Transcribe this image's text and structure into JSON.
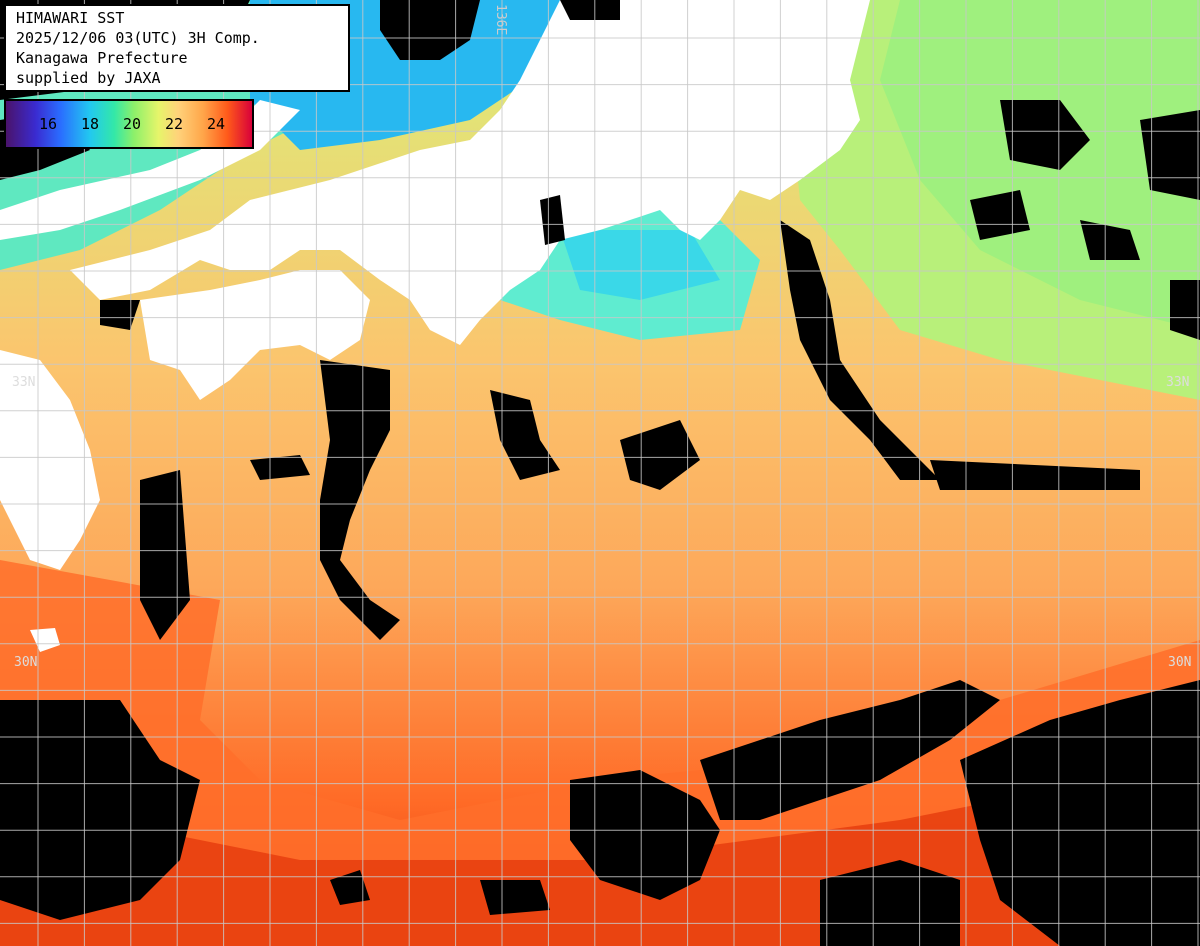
{
  "header": {
    "line1": "HIMAWARI SST",
    "line2": "2025/12/06 03(UTC) 3H Comp.",
    "line3": "Kanagawa Prefecture",
    "line4": "supplied by JAXA"
  },
  "legend": {
    "labels": [
      "16",
      "18",
      "20",
      "22",
      "24"
    ]
  },
  "grid": {
    "lat_labels": [
      "33N",
      "33N",
      "30N",
      "30N"
    ],
    "lon_label": "136E"
  },
  "colors": {
    "land": "#ffffff",
    "cloud": "#000000",
    "cold": "#2a5cff",
    "cool": "#5ff0c8",
    "mild": "#c8f07a",
    "warm": "#fdc46e",
    "hot": "#ff6a26",
    "hottest": "#e23c10",
    "grid": "#c8c8c8"
  }
}
